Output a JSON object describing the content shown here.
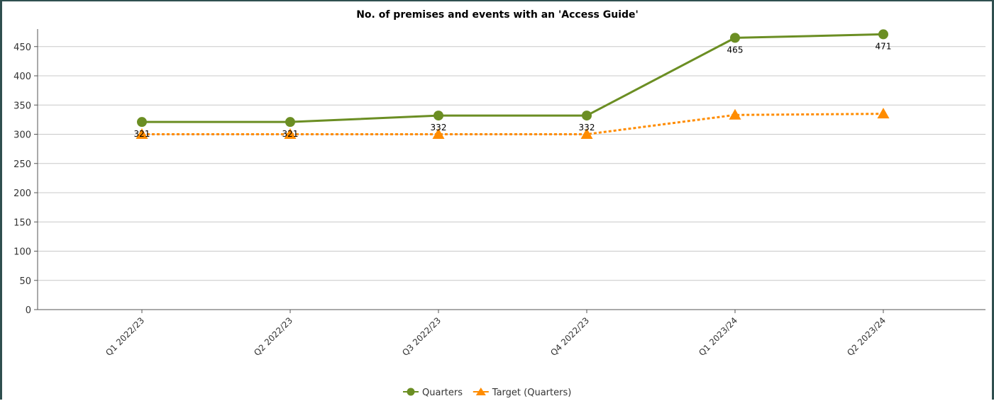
{
  "chart_data": {
    "type": "line",
    "title": "No. of premises and events with an 'Access Guide'",
    "xlabel": "",
    "ylabel": "",
    "categories": [
      "Q1 2022/23",
      "Q2 2022/23",
      "Q3 2022/23",
      "Q4 2022/23",
      "Q1 2023/24",
      "Q2 2023/24"
    ],
    "ylim": [
      0,
      480
    ],
    "yticks": [
      0,
      50,
      100,
      150,
      200,
      250,
      300,
      350,
      400,
      450
    ],
    "ytick_labels": [
      "0",
      "50",
      "100",
      "150",
      "200",
      "250",
      "300",
      "350",
      "400",
      "450"
    ],
    "grid": true,
    "legend_position": "bottom",
    "series": [
      {
        "name": "Quarters",
        "values": [
          321,
          321,
          332,
          332,
          465,
          471
        ],
        "data_labels": [
          "321",
          "321",
          "332",
          "332",
          "465",
          "471"
        ],
        "color": "#6b8e23",
        "marker": "circle",
        "line_style": "solid"
      },
      {
        "name": "Target (Quarters)",
        "values": [
          300,
          300,
          300,
          300,
          333,
          335
        ],
        "color": "#ff8c00",
        "marker": "triangle",
        "line_style": "dashed"
      }
    ]
  }
}
